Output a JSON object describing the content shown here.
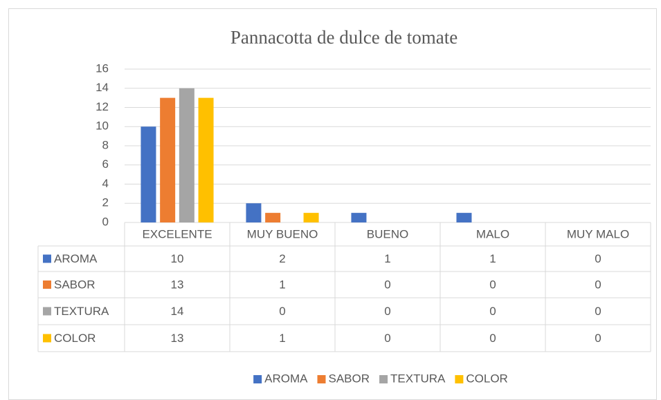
{
  "chart_data": {
    "type": "bar",
    "title": "Pannacotta de dulce de tomate",
    "categories": [
      "EXCELENTE",
      "MUY BUENO",
      "BUENO",
      "MALO",
      "MUY MALO"
    ],
    "series": [
      {
        "name": "AROMA",
        "color": "#4472c4",
        "values": [
          10,
          2,
          1,
          1,
          0
        ]
      },
      {
        "name": "SABOR",
        "color": "#ed7d31",
        "values": [
          13,
          1,
          0,
          0,
          0
        ]
      },
      {
        "name": "TEXTURA",
        "color": "#a5a5a5",
        "values": [
          14,
          0,
          0,
          0,
          0
        ]
      },
      {
        "name": "COLOR",
        "color": "#ffc000",
        "values": [
          13,
          1,
          0,
          0,
          0
        ]
      }
    ],
    "ylim": [
      0,
      16
    ],
    "yticks": [
      0,
      2,
      4,
      6,
      8,
      10,
      12,
      14,
      16
    ],
    "grid": true,
    "legend": "bottom"
  }
}
